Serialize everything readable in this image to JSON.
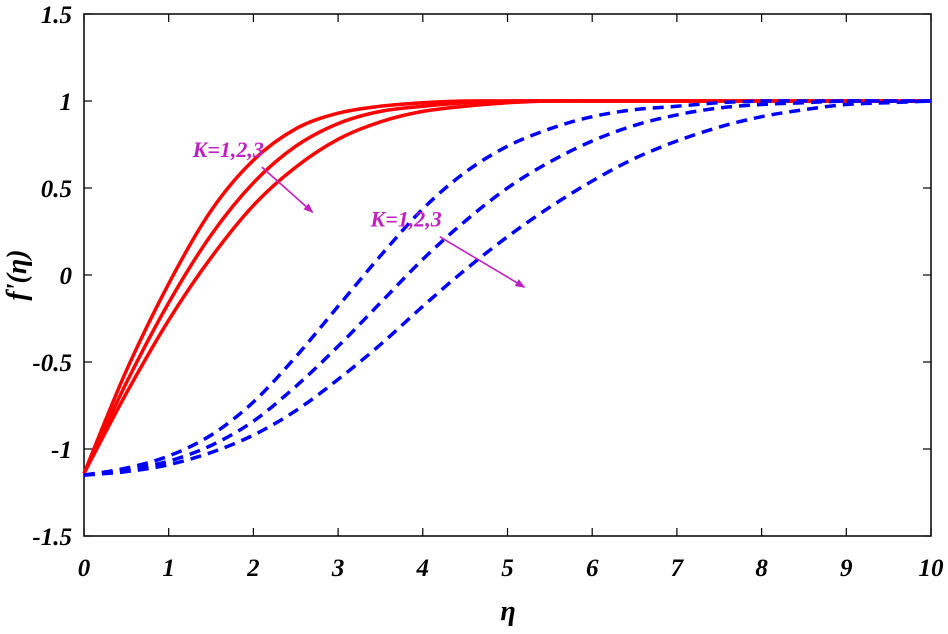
{
  "chart_data": {
    "type": "line",
    "xlabel": "η",
    "ylabel": "f'(η)",
    "xlim": [
      0,
      10
    ],
    "ylim": [
      -1.5,
      1.5
    ],
    "xticks": [
      0,
      1,
      2,
      3,
      4,
      5,
      6,
      7,
      8,
      9,
      10
    ],
    "xtick_labels": [
      "0",
      "1",
      "2",
      "3",
      "4",
      "5",
      "6",
      "7",
      "8",
      "9",
      "10"
    ],
    "yticks": [
      1.5,
      1,
      0.5,
      0,
      -0.5,
      -1,
      -1.5
    ],
    "ytick_labels": [
      "1.5",
      "1",
      "0.5",
      "0",
      "-0.5",
      "-1",
      "-1.5"
    ],
    "grid": false,
    "x": [
      0,
      0.5,
      1,
      1.5,
      2,
      2.5,
      3,
      3.5,
      4,
      4.5,
      5,
      5.5,
      6,
      6.5,
      7,
      7.5,
      8,
      8.5,
      9,
      9.5,
      10
    ],
    "series": [
      {
        "group": "solid",
        "color": "#ff0000",
        "style": "solid",
        "values": [
          -1.14,
          -0.55,
          -0.05,
          0.37,
          0.66,
          0.84,
          0.93,
          0.97,
          0.99,
          1.0,
          1.0,
          1.0,
          1.0,
          1.0,
          1.0,
          1.0,
          1.0,
          1.0,
          1.0,
          1.0,
          1.0
        ]
      },
      {
        "group": "solid",
        "color": "#ff0000",
        "style": "solid",
        "values": [
          -1.14,
          -0.62,
          -0.16,
          0.23,
          0.53,
          0.74,
          0.87,
          0.94,
          0.97,
          0.99,
          1.0,
          1.0,
          1.0,
          1.0,
          1.0,
          1.0,
          1.0,
          1.0,
          1.0,
          1.0,
          1.0
        ]
      },
      {
        "group": "solid",
        "color": "#ff0000",
        "style": "solid",
        "values": [
          -1.14,
          -0.68,
          -0.26,
          0.1,
          0.4,
          0.62,
          0.78,
          0.88,
          0.94,
          0.97,
          0.99,
          1.0,
          1.0,
          1.0,
          1.0,
          1.0,
          1.0,
          1.0,
          1.0,
          1.0,
          1.0
        ]
      },
      {
        "group": "dashed",
        "color": "#0000ff",
        "style": "dashed",
        "values": [
          -1.15,
          -1.11,
          -1.04,
          -0.92,
          -0.73,
          -0.47,
          -0.18,
          0.11,
          0.38,
          0.59,
          0.74,
          0.84,
          0.91,
          0.95,
          0.97,
          0.99,
          1.0,
          1.0,
          1.0,
          1.0,
          1.0
        ]
      },
      {
        "group": "dashed",
        "color": "#0000ff",
        "style": "dashed",
        "values": [
          -1.15,
          -1.12,
          -1.07,
          -0.98,
          -0.84,
          -0.64,
          -0.41,
          -0.16,
          0.09,
          0.31,
          0.5,
          0.65,
          0.77,
          0.86,
          0.92,
          0.96,
          0.98,
          0.99,
          1.0,
          1.0,
          1.0
        ]
      },
      {
        "group": "dashed",
        "color": "#0000ff",
        "style": "dashed",
        "values": [
          -1.15,
          -1.13,
          -1.09,
          -1.02,
          -0.92,
          -0.78,
          -0.6,
          -0.4,
          -0.18,
          0.03,
          0.22,
          0.39,
          0.54,
          0.67,
          0.77,
          0.85,
          0.91,
          0.95,
          0.98,
          0.99,
          1.0
        ]
      }
    ],
    "annotations": [
      {
        "text": "K=1,2,3",
        "color": "#c020c0",
        "arrow_from": [
          2.1,
          0.62
        ],
        "arrow_to": [
          2.7,
          0.36
        ]
      },
      {
        "text": "K=1,2,3",
        "color": "#c020c0",
        "arrow_from": [
          4.2,
          0.22
        ],
        "arrow_to": [
          5.2,
          -0.07
        ]
      }
    ]
  }
}
